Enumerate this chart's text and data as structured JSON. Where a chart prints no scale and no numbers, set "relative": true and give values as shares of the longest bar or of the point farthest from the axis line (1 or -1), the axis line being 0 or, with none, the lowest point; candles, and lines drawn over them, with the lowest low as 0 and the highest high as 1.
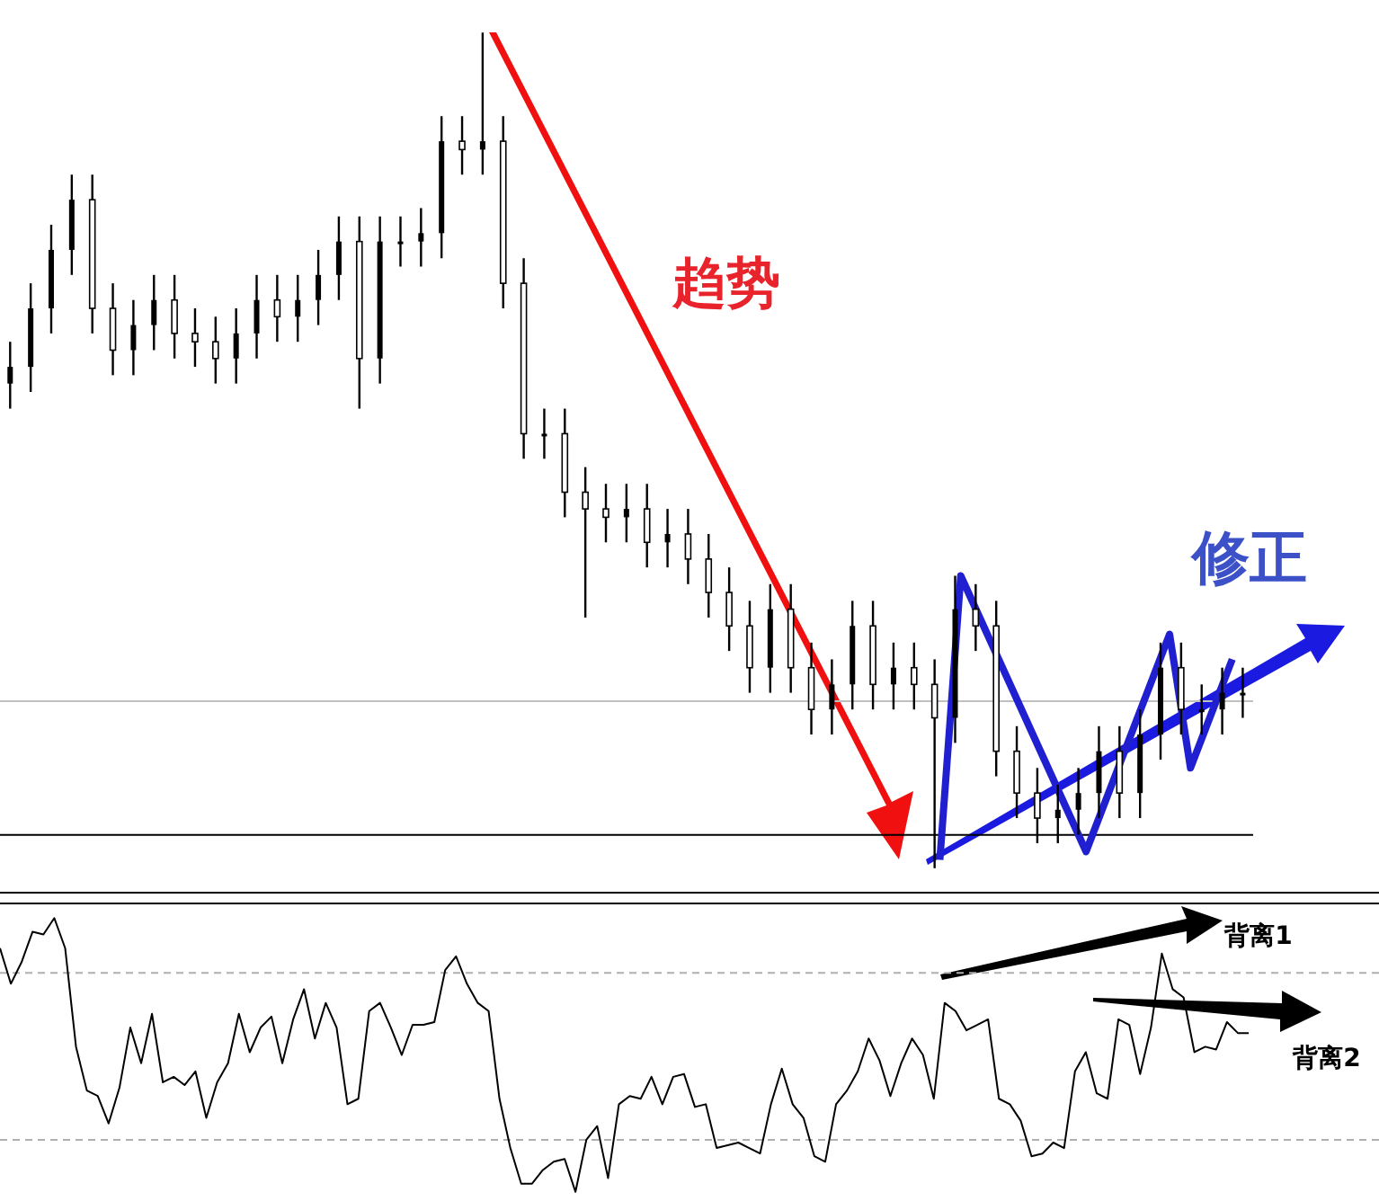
{
  "chart_data": [
    {
      "type": "candlestick",
      "relative": true,
      "color": "#000000",
      "tick_labels": false,
      "grid": false,
      "categories": [
        null,
        null,
        null,
        null,
        null,
        null,
        null,
        null,
        null,
        null,
        null,
        null,
        null,
        null,
        null,
        null,
        null,
        null,
        null,
        null,
        null,
        null,
        null,
        null,
        null,
        null,
        null,
        null,
        null,
        null,
        null,
        null,
        null,
        null,
        null,
        null,
        null,
        null,
        null,
        null,
        null,
        null,
        null,
        null,
        null,
        null,
        null,
        null,
        null,
        null,
        null,
        null,
        null,
        null,
        null,
        null,
        null,
        null,
        null,
        null,
        null
      ],
      "ohlc": [
        [
          0.58,
          0.63,
          0.55,
          0.6
        ],
        [
          0.6,
          0.7,
          0.57,
          0.67
        ],
        [
          0.67,
          0.77,
          0.64,
          0.74
        ],
        [
          0.74,
          0.83,
          0.71,
          0.8
        ],
        [
          0.8,
          0.83,
          0.64,
          0.67
        ],
        [
          0.67,
          0.7,
          0.59,
          0.62
        ],
        [
          0.62,
          0.68,
          0.59,
          0.65
        ],
        [
          0.65,
          0.71,
          0.62,
          0.68
        ],
        [
          0.68,
          0.71,
          0.61,
          0.64
        ],
        [
          0.64,
          0.67,
          0.6,
          0.63
        ],
        [
          0.63,
          0.66,
          0.58,
          0.61
        ],
        [
          0.61,
          0.67,
          0.58,
          0.64
        ],
        [
          0.64,
          0.71,
          0.61,
          0.68
        ],
        [
          0.68,
          0.71,
          0.63,
          0.66
        ],
        [
          0.66,
          0.71,
          0.63,
          0.68
        ],
        [
          0.68,
          0.74,
          0.65,
          0.71
        ],
        [
          0.71,
          0.78,
          0.68,
          0.75
        ],
        [
          0.75,
          0.78,
          0.55,
          0.61
        ],
        [
          0.61,
          0.78,
          0.58,
          0.75
        ],
        [
          0.75,
          0.78,
          0.72,
          0.75
        ],
        [
          0.75,
          0.79,
          0.72,
          0.76
        ],
        [
          0.76,
          0.9,
          0.73,
          0.87
        ],
        [
          0.87,
          0.9,
          0.83,
          0.86
        ],
        [
          0.86,
          1,
          0.83,
          0.87
        ],
        [
          0.87,
          0.9,
          0.67,
          0.7
        ],
        [
          0.7,
          0.73,
          0.49,
          0.52
        ],
        [
          0.52,
          0.55,
          0.49,
          0.52
        ],
        [
          0.52,
          0.55,
          0.42,
          0.45
        ],
        [
          0.45,
          0.48,
          0.3,
          0.43
        ],
        [
          0.43,
          0.46,
          0.39,
          0.42
        ],
        [
          0.42,
          0.46,
          0.39,
          0.43
        ],
        [
          0.43,
          0.46,
          0.36,
          0.39
        ],
        [
          0.39,
          0.43,
          0.36,
          0.4
        ],
        [
          0.4,
          0.43,
          0.34,
          0.37
        ],
        [
          0.37,
          0.4,
          0.3,
          0.33
        ],
        [
          0.33,
          0.36,
          0.26,
          0.29
        ],
        [
          0.29,
          0.32,
          0.21,
          0.24
        ],
        [
          0.24,
          0.34,
          0.21,
          0.31
        ],
        [
          0.31,
          0.34,
          0.21,
          0.24
        ],
        [
          0.24,
          0.27,
          0.16,
          0.19
        ],
        [
          0.19,
          0.25,
          0.16,
          0.22
        ],
        [
          0.22,
          0.32,
          0.19,
          0.29
        ],
        [
          0.29,
          0.32,
          0.19,
          0.22
        ],
        [
          0.22,
          0.27,
          0.19,
          0.24
        ],
        [
          0.24,
          0.27,
          0.19,
          0.22
        ],
        [
          0.22,
          0.25,
          0,
          0.18
        ],
        [
          0.18,
          0.35,
          0.15,
          0.31
        ],
        [
          0.31,
          0.34,
          0.26,
          0.29
        ],
        [
          0.29,
          0.32,
          0.11,
          0.14
        ],
        [
          0.14,
          0.17,
          0.06,
          0.09
        ],
        [
          0.09,
          0.12,
          0.03,
          0.06
        ],
        [
          0.06,
          0.1,
          0.03,
          0.07
        ],
        [
          0.07,
          0.12,
          0.04,
          0.09
        ],
        [
          0.09,
          0.17,
          0.06,
          0.14
        ],
        [
          0.14,
          0.17,
          0.06,
          0.09
        ],
        [
          0.09,
          0.19,
          0.06,
          0.16
        ],
        [
          0.16,
          0.27,
          0.13,
          0.24
        ],
        [
          0.24,
          0.27,
          0.16,
          0.19
        ],
        [
          0.19,
          0.22,
          0.16,
          0.19
        ],
        [
          0.19,
          0.24,
          0.16,
          0.21
        ],
        [
          0.21,
          0.24,
          0.18,
          0.21
        ]
      ],
      "series": [
        {
          "type": "line",
          "color": "#2020d0",
          "values": [
            null,
            null,
            null,
            null,
            null,
            null,
            null,
            null,
            null,
            null,
            null,
            null,
            null,
            null,
            null,
            null,
            null,
            null,
            null,
            null,
            null,
            null,
            null,
            null,
            null,
            null,
            null,
            null,
            null,
            null,
            null,
            null,
            null,
            null,
            null,
            null,
            null,
            null,
            null,
            null,
            null,
            null,
            null,
            null,
            null,
            0.01,
            0.35,
            null,
            null,
            null,
            0.13,
            null,
            0.02,
            null,
            null,
            null,
            0.28,
            0.12,
            null,
            0.25,
            null
          ]
        }
      ],
      "ref_lines": [
        {
          "axis": "y",
          "value": 0.2,
          "color": "#c0c0c0"
        },
        {
          "axis": "y",
          "value": 0.04,
          "color": "#000000"
        }
      ],
      "annotations": [
        "趋势",
        "修正"
      ]
    },
    {
      "type": "line",
      "relative": true,
      "color": "#000000",
      "tick_labels": false,
      "grid": false,
      "marker": "none",
      "categories": [
        null,
        null,
        null,
        null,
        null,
        null,
        null,
        null,
        null,
        null,
        null,
        null,
        null,
        null,
        null,
        null,
        null,
        null,
        null,
        null,
        null,
        null,
        null,
        null,
        null,
        null,
        null,
        null,
        null,
        null,
        null,
        null,
        null,
        null,
        null,
        null,
        null,
        null,
        null,
        null,
        null,
        null,
        null,
        null,
        null,
        null,
        null,
        null,
        null,
        null,
        null,
        null,
        null,
        null,
        null,
        null,
        null,
        null,
        null,
        null,
        null,
        null,
        null,
        null,
        null,
        null,
        null,
        null,
        null,
        null,
        null,
        null,
        null,
        null,
        null,
        null,
        null,
        null,
        null,
        null,
        null,
        null,
        null,
        null,
        null,
        null,
        null,
        null,
        null,
        null,
        null,
        null,
        null,
        null,
        null,
        null,
        null,
        null,
        null,
        null,
        null,
        null,
        null,
        null,
        null,
        null,
        null,
        null,
        null,
        null,
        null,
        null,
        null,
        null,
        null,
        null,
        null,
        null,
        null,
        null,
        null,
        null,
        null,
        null,
        null,
        null,
        null,
        null
      ],
      "values": [
        0.89,
        0.76,
        0.84,
        0.95,
        0.94,
        1,
        0.89,
        0.53,
        0.37,
        0.35,
        0.25,
        0.38,
        0.6,
        0.47,
        0.65,
        0.4,
        0.42,
        0.39,
        0.44,
        0.27,
        0.4,
        0.47,
        0.65,
        0.51,
        0.6,
        0.64,
        0.47,
        0.63,
        0.74,
        0.56,
        0.69,
        0.6,
        0.32,
        0.34,
        0.66,
        0.69,
        0.6,
        0.5,
        0.61,
        0.61,
        0.62,
        0.81,
        0.86,
        0.76,
        0.69,
        0.66,
        0.34,
        0.16,
        0.03,
        0.03,
        0.08,
        0.11,
        0.12,
        0,
        0.19,
        0.24,
        0.05,
        0.32,
        0.35,
        0.34,
        0.42,
        0.32,
        0.42,
        0.43,
        0.31,
        0.32,
        0.16,
        0.17,
        0.18,
        0.16,
        0.14,
        0.32,
        0.45,
        0.32,
        0.27,
        0.13,
        0.11,
        0.32,
        0.37,
        0.44,
        0.56,
        0.48,
        0.35,
        0.47,
        0.56,
        0.5,
        0.34,
        0.69,
        0.66,
        0.59,
        0.61,
        0.63,
        0.34,
        0.32,
        0.26,
        0.13,
        0.14,
        0.18,
        0.16,
        0.44,
        0.51,
        0.36,
        0.34,
        0.63,
        0.61,
        0.43,
        0.6,
        0.87,
        0.74,
        0.71,
        0.51,
        0.53,
        0.52,
        0.62,
        0.58,
        0.58,
        null,
        null,
        null,
        null,
        null,
        null,
        null,
        null,
        null,
        null,
        null,
        null
      ],
      "ref_lines": [
        {
          "axis": "y",
          "value": 0.8,
          "color": "#b0b0b0",
          "line_style": "dashed"
        },
        {
          "axis": "y",
          "value": 0.19,
          "color": "#b0b0b0",
          "line_style": "dashed"
        }
      ],
      "annotations": [
        "背离1",
        "背离2"
      ]
    }
  ]
}
